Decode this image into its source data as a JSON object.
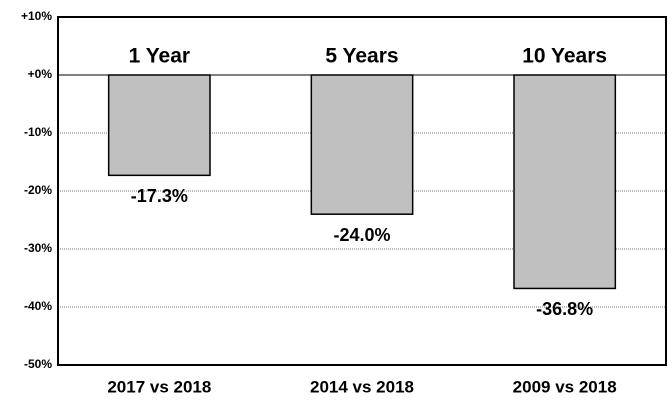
{
  "chart_data": {
    "type": "bar",
    "categories": [
      "2017 vs 2018",
      "2014 vs 2018",
      "2009 vs 2018"
    ],
    "annotations": [
      "1 Year",
      "5 Years",
      "10 Years"
    ],
    "values": [
      -17.3,
      -24.0,
      -36.8
    ],
    "value_labels": [
      "-17.3%",
      "-24.0%",
      "-36.8%"
    ],
    "color": "#c0c0c0",
    "ylim": [
      -50,
      10
    ],
    "yticks": [
      {
        "value": 10,
        "label": "+10%"
      },
      {
        "value": 0,
        "label": "+0%"
      },
      {
        "value": -10,
        "label": "-10%"
      },
      {
        "value": -20,
        "label": "-20%"
      },
      {
        "value": -30,
        "label": "-30%"
      },
      {
        "value": -40,
        "label": "-40%"
      },
      {
        "value": -50,
        "label": "-50%"
      }
    ],
    "grid": true
  }
}
